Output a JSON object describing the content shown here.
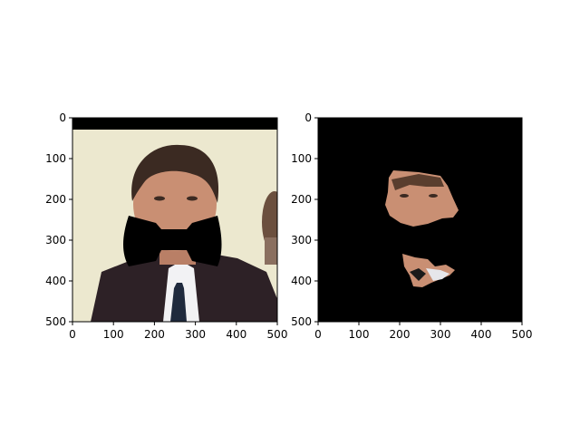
{
  "panels": [
    {
      "name": "left-image-panel",
      "x_ticks": [
        "0",
        "100",
        "200",
        "300",
        "400",
        "500"
      ],
      "y_ticks": [
        "0",
        "100",
        "200",
        "300",
        "400",
        "500"
      ],
      "content": "masked-photo-bowtie"
    },
    {
      "name": "right-image-panel",
      "x_ticks": [
        "0",
        "100",
        "200",
        "300",
        "400",
        "500"
      ],
      "y_ticks": [
        "0",
        "100",
        "200",
        "300",
        "400",
        "500"
      ],
      "content": "segmented-face-fragments"
    }
  ],
  "axis_range": [
    0,
    500
  ],
  "colors": {
    "background": "#ffffff",
    "mask": "#000000",
    "wall": "#ece8cf",
    "skin": "#c98f73",
    "hair": "#3b2a22",
    "suit": "#2d2126",
    "shirt": "#f2f2f4",
    "tie": "#1f2a3d"
  }
}
